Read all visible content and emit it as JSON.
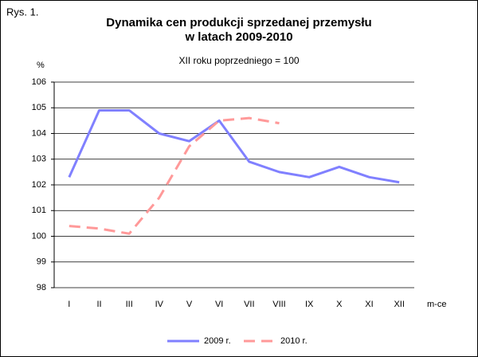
{
  "chart_data": {
    "type": "line",
    "label": "Rys. 1.",
    "title": [
      "Dynamika cen produkcji sprzedanej przemysłu",
      "w latach 2009-2010"
    ],
    "subtitle": "XII roku poprzedniego = 100",
    "y_label": "%",
    "x_label": "m-ce",
    "categories": [
      "I",
      "II",
      "III",
      "IV",
      "V",
      "VI",
      "VII",
      "VIII",
      "IX",
      "X",
      "XI",
      "XII"
    ],
    "series": [
      {
        "name": "2009 r.",
        "color": "#8080ff",
        "dashed": false,
        "values": [
          102.3,
          104.9,
          104.9,
          104.0,
          103.7,
          104.5,
          102.9,
          102.5,
          102.3,
          102.7,
          102.3,
          102.1
        ]
      },
      {
        "name": "2010 r.",
        "color": "#ff9999",
        "dashed": true,
        "values": [
          100.4,
          100.3,
          100.1,
          101.5,
          103.5,
          104.5,
          104.6,
          104.4,
          null,
          null,
          null,
          null
        ]
      }
    ],
    "ylim": [
      98,
      106
    ],
    "yticks": [
      98,
      99,
      100,
      101,
      102,
      103,
      104,
      105,
      106
    ],
    "grid": true,
    "legend": "bottom"
  }
}
